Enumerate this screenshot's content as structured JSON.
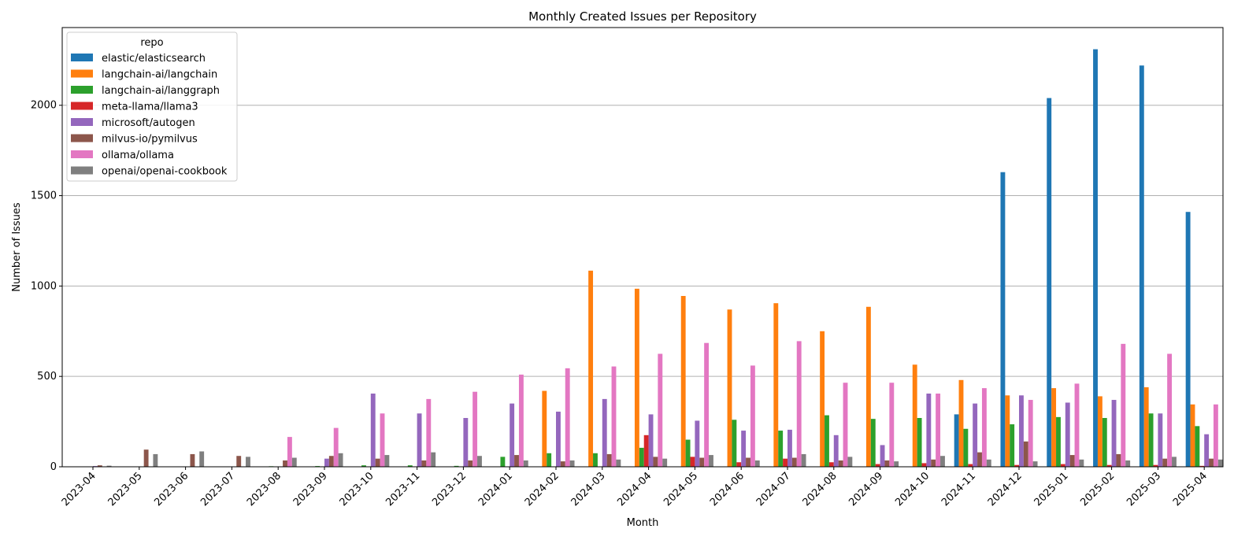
{
  "chart_data": {
    "type": "bar",
    "title": "Monthly Created Issues per Repository",
    "xlabel": "Month",
    "ylabel": "Number of Issues",
    "ylim": [
      0,
      2430
    ],
    "yticks": [
      0,
      500,
      1000,
      1500,
      2000
    ],
    "grid": "horizontal",
    "legend": {
      "title": "repo",
      "placement": "top-left"
    },
    "categories": [
      "2023-04",
      "2023-05",
      "2023-06",
      "2023-07",
      "2023-08",
      "2023-09",
      "2023-10",
      "2023-11",
      "2023-12",
      "2024-01",
      "2024-02",
      "2024-03",
      "2024-04",
      "2024-05",
      "2024-06",
      "2024-07",
      "2024-08",
      "2024-09",
      "2024-10",
      "2024-11",
      "2024-12",
      "2025-01",
      "2025-02",
      "2025-03",
      "2025-04"
    ],
    "series": [
      {
        "name": "elastic/elasticsearch",
        "color": "#1f77b4",
        "values": [
          0,
          0,
          0,
          0,
          0,
          0,
          0,
          0,
          0,
          0,
          0,
          0,
          0,
          0,
          0,
          0,
          0,
          0,
          0,
          290,
          1630,
          2040,
          2310,
          2220,
          1410
        ]
      },
      {
        "name": "langchain-ai/langchain",
        "color": "#ff7f0e",
        "values": [
          0,
          0,
          0,
          0,
          0,
          0,
          0,
          0,
          0,
          0,
          420,
          1085,
          985,
          945,
          870,
          905,
          750,
          885,
          565,
          480,
          395,
          435,
          390,
          440,
          345
        ]
      },
      {
        "name": "langchain-ai/langgraph",
        "color": "#2ca02c",
        "values": [
          0,
          0,
          0,
          0,
          3,
          4,
          8,
          8,
          5,
          55,
          75,
          75,
          105,
          150,
          260,
          200,
          285,
          265,
          270,
          210,
          235,
          275,
          270,
          295,
          225
        ]
      },
      {
        "name": "meta-llama/llama3",
        "color": "#d62728",
        "values": [
          0,
          0,
          0,
          0,
          0,
          0,
          0,
          0,
          0,
          0,
          0,
          0,
          175,
          55,
          25,
          45,
          25,
          15,
          20,
          15,
          10,
          15,
          10,
          10,
          5
        ]
      },
      {
        "name": "microsoft/autogen",
        "color": "#9467bd",
        "values": [
          4,
          0,
          0,
          0,
          0,
          45,
          405,
          295,
          270,
          350,
          305,
          375,
          290,
          255,
          200,
          205,
          175,
          120,
          405,
          350,
          395,
          355,
          370,
          295,
          180
        ]
      },
      {
        "name": "milvus-io/pymilvus",
        "color": "#8c564b",
        "values": [
          8,
          95,
          70,
          60,
          35,
          60,
          45,
          35,
          35,
          65,
          30,
          70,
          55,
          50,
          50,
          50,
          35,
          35,
          40,
          80,
          140,
          65,
          70,
          45,
          45
        ]
      },
      {
        "name": "ollama/ollama",
        "color": "#e377c2",
        "values": [
          0,
          0,
          0,
          0,
          165,
          215,
          295,
          375,
          415,
          510,
          545,
          555,
          625,
          685,
          560,
          695,
          465,
          465,
          405,
          435,
          370,
          460,
          680,
          625,
          345
        ]
      },
      {
        "name": "openai/openai-cookbook",
        "color": "#7f7f7f",
        "values": [
          6,
          70,
          85,
          55,
          50,
          75,
          65,
          80,
          60,
          35,
          35,
          40,
          45,
          65,
          35,
          70,
          55,
          30,
          60,
          40,
          30,
          40,
          35,
          55,
          40
        ]
      }
    ]
  }
}
